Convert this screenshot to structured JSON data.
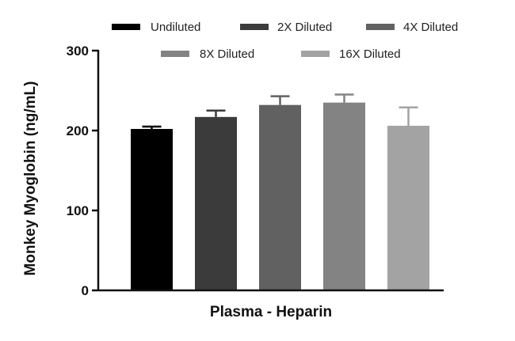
{
  "chart_data": {
    "type": "bar",
    "categories": [
      "Plasma - Heparin"
    ],
    "xlabel": "Plasma - Heparin",
    "ylabel": "Monkey Myoglobin (ng/mL)",
    "ylim": [
      0,
      300
    ],
    "yticks": [
      0,
      100,
      200,
      300
    ],
    "grid": false,
    "legend_position": "top",
    "series": [
      {
        "name": "Undiluted",
        "values": [
          202
        ],
        "error": [
          3
        ],
        "color": "#000000"
      },
      {
        "name": "2X Diluted",
        "values": [
          217
        ],
        "error": [
          8
        ],
        "color": "#3b3b3b"
      },
      {
        "name": "4X Diluted",
        "values": [
          232
        ],
        "error": [
          11
        ],
        "color": "#616161"
      },
      {
        "name": "8X Diluted",
        "values": [
          235
        ],
        "error": [
          10
        ],
        "color": "#838383"
      },
      {
        "name": "16X Diluted",
        "values": [
          206
        ],
        "error": [
          23
        ],
        "color": "#a3a3a3"
      }
    ]
  }
}
